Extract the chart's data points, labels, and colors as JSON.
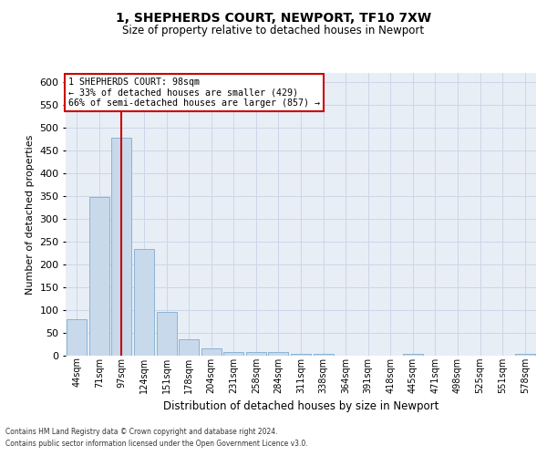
{
  "title1": "1, SHEPHERDS COURT, NEWPORT, TF10 7XW",
  "title2": "Size of property relative to detached houses in Newport",
  "xlabel": "Distribution of detached houses by size in Newport",
  "ylabel": "Number of detached properties",
  "categories": [
    "44sqm",
    "71sqm",
    "97sqm",
    "124sqm",
    "151sqm",
    "178sqm",
    "204sqm",
    "231sqm",
    "258sqm",
    "284sqm",
    "311sqm",
    "338sqm",
    "364sqm",
    "391sqm",
    "418sqm",
    "445sqm",
    "471sqm",
    "498sqm",
    "525sqm",
    "551sqm",
    "578sqm"
  ],
  "values": [
    80,
    348,
    478,
    235,
    96,
    37,
    16,
    8,
    8,
    8,
    4,
    4,
    0,
    0,
    0,
    5,
    0,
    0,
    0,
    0,
    4
  ],
  "bar_color": "#c8d9ec",
  "bar_edge_color": "#8ab4d4",
  "grid_color": "#cdd6e8",
  "background_color": "#e8eef6",
  "vline_x_index": 2,
  "vline_color": "#cc0000",
  "annotation_line1": "1 SHEPHERDS COURT: 98sqm",
  "annotation_line2": "← 33% of detached houses are smaller (429)",
  "annotation_line3": "66% of semi-detached houses are larger (857) →",
  "annotation_box_color": "#ffffff",
  "annotation_box_edge_color": "#cc0000",
  "ylim_max": 620,
  "yticks": [
    0,
    50,
    100,
    150,
    200,
    250,
    300,
    350,
    400,
    450,
    500,
    550,
    600
  ],
  "footer1": "Contains HM Land Registry data © Crown copyright and database right 2024.",
  "footer2": "Contains public sector information licensed under the Open Government Licence v3.0."
}
